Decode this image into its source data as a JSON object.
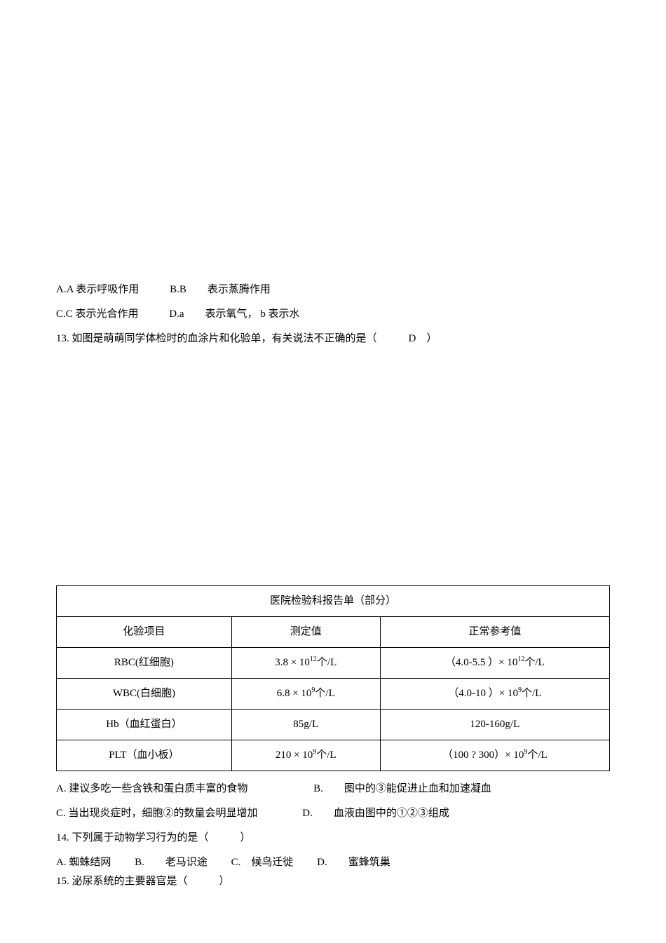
{
  "q12": {
    "optA": "A.A 表示呼吸作用",
    "optB": "B.B　　表示蒸腾作用",
    "optC": "C.C 表示光合作用",
    "optD": "D.a　　表示氧气，  b 表示水"
  },
  "q13": {
    "text": "13. 如图是萌萌同学体检时的血涂片和化验单，有关说法不正确的是（　　　D　）"
  },
  "table": {
    "title": "医院检验科报告单（部分）",
    "headers": [
      "化验项目",
      "测定值",
      "正常参考值"
    ],
    "rows": [
      {
        "item": "RBC(红细胞)",
        "measured_prefix": "3.8 × 10",
        "measured_sup": "12",
        "measured_suffix": "个/L",
        "ref_prefix": "（4.0-5.5 ）× 10",
        "ref_sup": "12",
        "ref_suffix": "个/L"
      },
      {
        "item": "WBC(白细胞)",
        "measured_prefix": "6.8 × 10",
        "measured_sup": "9",
        "measured_suffix": "个/L",
        "ref_prefix": "（4.0-10 ）× 10",
        "ref_sup": "9",
        "ref_suffix": "个/L"
      },
      {
        "item": "Hb（血红蛋白）",
        "measured_plain": "85g/L",
        "ref_plain": "120-160g/L"
      },
      {
        "item": "PLT（血小板）",
        "measured_prefix": "210  × 10",
        "measured_sup": "9",
        "measured_suffix": "个/L",
        "ref_prefix": "（100  ?  300）× 10",
        "ref_sup": "9",
        "ref_suffix": "个/L"
      }
    ]
  },
  "q13_answers": {
    "optA": "A. 建议多吃一些含铁和蛋白质丰富的食物",
    "optB": "B.　　图中的③能促进止血和加速凝血",
    "optC": "C. 当出现炎症时，细胞②的数量会明显增加",
    "optD": "D.　　血液由图中的①②③组成"
  },
  "q14": {
    "text": "14. 下列属于动物学习行为的是（　　　）",
    "optA": "A. 蜘蛛结网",
    "optB": "B.　　老马识途",
    "optC": "C.　候鸟迁徙",
    "optD": "D.　　蜜蜂筑巢"
  },
  "q15": {
    "text": "15. 泌尿系统的主要器官是（　　　）"
  }
}
